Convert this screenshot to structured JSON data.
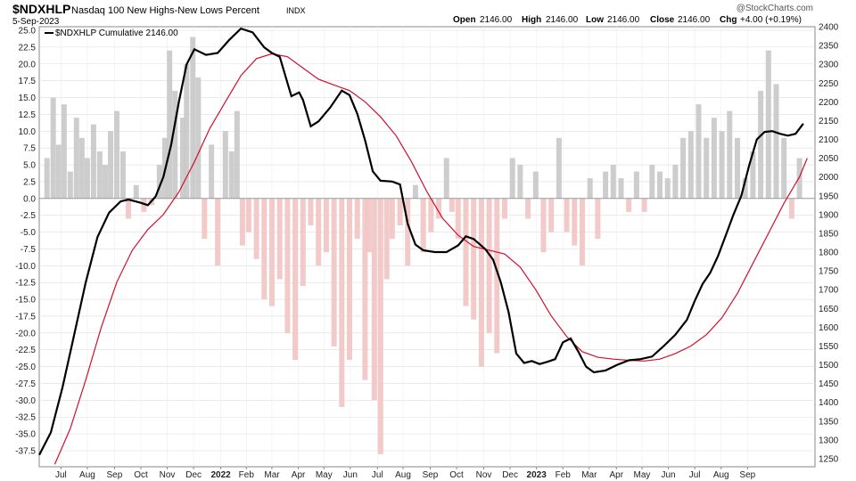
{
  "header": {
    "symbol": "$NDXHLP",
    "name": "Nasdaq 100 New Highs-New Lows Percent",
    "exchange": "INDX",
    "date": "5-Sep-2023",
    "ohlc": {
      "open_label": "Open",
      "open": "2146.00",
      "high_label": "High",
      "high": "2146.00",
      "low_label": "Low",
      "low": "2146.00",
      "close_label": "Close",
      "close": "2146.00",
      "chg_label": "Chg",
      "chg": "+4.00 (+0.19%)"
    },
    "watermark": "@StockCharts.com"
  },
  "legend": {
    "text": "$NDXHLP Cumulative 2146.00"
  },
  "colors": {
    "cumulative": "#000000",
    "ma": "#d0102a",
    "pos_fill": "#c8c8c8",
    "neg_fill": "#f2c4c4",
    "grid": "#dddddd"
  },
  "chart_data": {
    "type": "line",
    "left_axis": {
      "min": -37.5,
      "max": 25.0,
      "ticks": [
        "25.0",
        "22.5",
        "20.0",
        "17.5",
        "15.0",
        "12.5",
        "10.0",
        "7.5",
        "5.0",
        "2.5",
        "0.0",
        "-2.5",
        "-5.0",
        "-7.5",
        "-10.0",
        "-12.5",
        "-15.0",
        "-17.5",
        "-20.0",
        "-22.5",
        "-25.0",
        "-27.5",
        "-30.0",
        "-32.5",
        "-35.0",
        "-37.5"
      ]
    },
    "right_axis": {
      "min": 1250,
      "max": 2400,
      "ticks": [
        "2400",
        "2350",
        "2300",
        "2250",
        "2200",
        "2150",
        "2100",
        "2050",
        "2000",
        "1950",
        "1900",
        "1850",
        "1800",
        "1750",
        "1700",
        "1650",
        "1600",
        "1550",
        "1500",
        "1450",
        "1400",
        "1350",
        "1300",
        "1250"
      ]
    },
    "x_labels": [
      {
        "label": "Jul",
        "t": 0.028
      },
      {
        "label": "Aug",
        "t": 0.062
      },
      {
        "label": "Sep",
        "t": 0.097
      },
      {
        "label": "Oct",
        "t": 0.131
      },
      {
        "label": "Nov",
        "t": 0.165
      },
      {
        "label": "Dec",
        "t": 0.199
      },
      {
        "label": "2022",
        "t": 0.234,
        "year": true
      },
      {
        "label": "Feb",
        "t": 0.267
      },
      {
        "label": "Mar",
        "t": 0.3
      },
      {
        "label": "Apr",
        "t": 0.334
      },
      {
        "label": "May",
        "t": 0.367
      },
      {
        "label": "Jun",
        "t": 0.401
      },
      {
        "label": "Jul",
        "t": 0.436
      },
      {
        "label": "Aug",
        "t": 0.469
      },
      {
        "label": "Sep",
        "t": 0.504
      },
      {
        "label": "Oct",
        "t": 0.538
      },
      {
        "label": "Nov",
        "t": 0.573
      },
      {
        "label": "Dec",
        "t": 0.607
      },
      {
        "label": "2023",
        "t": 0.641,
        "year": true
      },
      {
        "label": "Feb",
        "t": 0.675
      },
      {
        "label": "Mar",
        "t": 0.709
      },
      {
        "label": "Apr",
        "t": 0.744
      },
      {
        "label": "May",
        "t": 0.777
      },
      {
        "label": "Jun",
        "t": 0.811
      },
      {
        "label": "Jul",
        "t": 0.845
      },
      {
        "label": "Aug",
        "t": 0.879
      },
      {
        "label": "Sep",
        "t": 0.913
      }
    ],
    "series": [
      {
        "name": "$NDXHLP Cumulative",
        "axis": "right",
        "points": [
          [
            0,
            1260
          ],
          [
            0.015,
            1320
          ],
          [
            0.03,
            1440
          ],
          [
            0.045,
            1580
          ],
          [
            0.06,
            1720
          ],
          [
            0.075,
            1840
          ],
          [
            0.09,
            1905
          ],
          [
            0.105,
            1935
          ],
          [
            0.115,
            1940
          ],
          [
            0.13,
            1932
          ],
          [
            0.14,
            1925
          ],
          [
            0.15,
            1948
          ],
          [
            0.16,
            2000
          ],
          [
            0.17,
            2085
          ],
          [
            0.18,
            2200
          ],
          [
            0.19,
            2300
          ],
          [
            0.2,
            2340
          ],
          [
            0.215,
            2325
          ],
          [
            0.23,
            2330
          ],
          [
            0.245,
            2365
          ],
          [
            0.26,
            2395
          ],
          [
            0.275,
            2385
          ],
          [
            0.29,
            2345
          ],
          [
            0.3,
            2330
          ],
          [
            0.31,
            2320
          ],
          [
            0.325,
            2215
          ],
          [
            0.335,
            2225
          ],
          [
            0.34,
            2205
          ],
          [
            0.35,
            2135
          ],
          [
            0.36,
            2148
          ],
          [
            0.375,
            2185
          ],
          [
            0.39,
            2230
          ],
          [
            0.4,
            2218
          ],
          [
            0.41,
            2168
          ],
          [
            0.42,
            2098
          ],
          [
            0.43,
            2015
          ],
          [
            0.44,
            1990
          ],
          [
            0.455,
            1988
          ],
          [
            0.465,
            1980
          ],
          [
            0.475,
            1875
          ],
          [
            0.485,
            1820
          ],
          [
            0.495,
            1805
          ],
          [
            0.51,
            1800
          ],
          [
            0.525,
            1800
          ],
          [
            0.54,
            1818
          ],
          [
            0.55,
            1842
          ],
          [
            0.56,
            1835
          ],
          [
            0.575,
            1808
          ],
          [
            0.585,
            1780
          ],
          [
            0.595,
            1720
          ],
          [
            0.605,
            1640
          ],
          [
            0.615,
            1530
          ],
          [
            0.625,
            1505
          ],
          [
            0.635,
            1510
          ],
          [
            0.645,
            1502
          ],
          [
            0.655,
            1508
          ],
          [
            0.665,
            1515
          ],
          [
            0.675,
            1560
          ],
          [
            0.685,
            1570
          ],
          [
            0.695,
            1535
          ],
          [
            0.705,
            1495
          ],
          [
            0.715,
            1480
          ],
          [
            0.73,
            1485
          ],
          [
            0.745,
            1500
          ],
          [
            0.76,
            1512
          ],
          [
            0.775,
            1515
          ],
          [
            0.79,
            1522
          ],
          [
            0.805,
            1550
          ],
          [
            0.82,
            1580
          ],
          [
            0.835,
            1620
          ],
          [
            0.845,
            1670
          ],
          [
            0.855,
            1715
          ],
          [
            0.865,
            1745
          ],
          [
            0.875,
            1790
          ],
          [
            0.885,
            1845
          ],
          [
            0.895,
            1900
          ],
          [
            0.905,
            1950
          ],
          [
            0.915,
            2030
          ],
          [
            0.925,
            2100
          ],
          [
            0.935,
            2120
          ],
          [
            0.945,
            2122
          ],
          [
            0.955,
            2115
          ],
          [
            0.965,
            2110
          ],
          [
            0.975,
            2115
          ],
          [
            0.985,
            2142
          ]
        ]
      },
      {
        "name": "Moving Average",
        "axis": "right",
        "points": [
          [
            0.02,
            1235
          ],
          [
            0.04,
            1330
          ],
          [
            0.06,
            1460
          ],
          [
            0.08,
            1600
          ],
          [
            0.1,
            1720
          ],
          [
            0.12,
            1805
          ],
          [
            0.14,
            1860
          ],
          [
            0.16,
            1900
          ],
          [
            0.18,
            1960
          ],
          [
            0.2,
            2040
          ],
          [
            0.22,
            2130
          ],
          [
            0.24,
            2200
          ],
          [
            0.26,
            2270
          ],
          [
            0.28,
            2315
          ],
          [
            0.3,
            2328
          ],
          [
            0.32,
            2320
          ],
          [
            0.34,
            2290
          ],
          [
            0.36,
            2260
          ],
          [
            0.38,
            2245
          ],
          [
            0.4,
            2230
          ],
          [
            0.42,
            2200
          ],
          [
            0.44,
            2160
          ],
          [
            0.46,
            2110
          ],
          [
            0.48,
            2040
          ],
          [
            0.5,
            1960
          ],
          [
            0.52,
            1890
          ],
          [
            0.54,
            1845
          ],
          [
            0.56,
            1815
          ],
          [
            0.58,
            1805
          ],
          [
            0.6,
            1795
          ],
          [
            0.62,
            1760
          ],
          [
            0.64,
            1700
          ],
          [
            0.66,
            1630
          ],
          [
            0.68,
            1575
          ],
          [
            0.7,
            1535
          ],
          [
            0.72,
            1520
          ],
          [
            0.74,
            1515
          ],
          [
            0.76,
            1512
          ],
          [
            0.78,
            1510
          ],
          [
            0.8,
            1515
          ],
          [
            0.82,
            1530
          ],
          [
            0.84,
            1550
          ],
          [
            0.86,
            1580
          ],
          [
            0.88,
            1625
          ],
          [
            0.9,
            1690
          ],
          [
            0.92,
            1770
          ],
          [
            0.94,
            1850
          ],
          [
            0.96,
            1930
          ],
          [
            0.98,
            2000
          ],
          [
            0.99,
            2050
          ]
        ]
      },
      {
        "name": "Daily Percent",
        "axis": "left",
        "bars": [
          [
            0.01,
            6
          ],
          [
            0.018,
            15
          ],
          [
            0.025,
            8
          ],
          [
            0.032,
            14
          ],
          [
            0.04,
            4
          ],
          [
            0.048,
            12
          ],
          [
            0.055,
            9
          ],
          [
            0.062,
            6
          ],
          [
            0.07,
            11
          ],
          [
            0.078,
            7
          ],
          [
            0.085,
            5
          ],
          [
            0.092,
            10
          ],
          [
            0.1,
            13
          ],
          [
            0.108,
            7
          ],
          [
            0.115,
            -3
          ],
          [
            0.125,
            2
          ],
          [
            0.135,
            -2
          ],
          [
            0.145,
            -1
          ],
          [
            0.155,
            5
          ],
          [
            0.162,
            9
          ],
          [
            0.168,
            22
          ],
          [
            0.175,
            16
          ],
          [
            0.185,
            12
          ],
          [
            0.19,
            20
          ],
          [
            0.198,
            24
          ],
          [
            0.205,
            18
          ],
          [
            0.213,
            -6
          ],
          [
            0.222,
            8
          ],
          [
            0.23,
            -10
          ],
          [
            0.24,
            10
          ],
          [
            0.248,
            7
          ],
          [
            0.255,
            13
          ],
          [
            0.262,
            -7
          ],
          [
            0.27,
            -5
          ],
          [
            0.28,
            -9
          ],
          [
            0.29,
            -15
          ],
          [
            0.3,
            -16
          ],
          [
            0.31,
            -12
          ],
          [
            0.32,
            -20
          ],
          [
            0.33,
            -24
          ],
          [
            0.34,
            -13
          ],
          [
            0.35,
            -4
          ],
          [
            0.36,
            -10
          ],
          [
            0.37,
            -8
          ],
          [
            0.38,
            -22
          ],
          [
            0.39,
            -31
          ],
          [
            0.4,
            -24
          ],
          [
            0.41,
            -6
          ],
          [
            0.42,
            -27
          ],
          [
            0.425,
            -8
          ],
          [
            0.432,
            -30
          ],
          [
            0.44,
            -38
          ],
          [
            0.448,
            -12
          ],
          [
            0.455,
            -6
          ],
          [
            0.465,
            -4
          ],
          [
            0.475,
            -10
          ],
          [
            0.485,
            2
          ],
          [
            0.495,
            -8
          ],
          [
            0.505,
            -5
          ],
          [
            0.515,
            -3
          ],
          [
            0.525,
            6
          ],
          [
            0.532,
            -2
          ],
          [
            0.54,
            -6
          ],
          [
            0.55,
            -16
          ],
          [
            0.56,
            -18
          ],
          [
            0.57,
            -25
          ],
          [
            0.58,
            -20
          ],
          [
            0.59,
            -23
          ],
          [
            0.6,
            -3
          ],
          [
            0.61,
            6
          ],
          [
            0.62,
            5
          ],
          [
            0.63,
            -3
          ],
          [
            0.64,
            4
          ],
          [
            0.65,
            -8
          ],
          [
            0.66,
            -5
          ],
          [
            0.67,
            9
          ],
          [
            0.68,
            -5
          ],
          [
            0.69,
            -7
          ],
          [
            0.7,
            -10
          ],
          [
            0.71,
            3
          ],
          [
            0.72,
            -6
          ],
          [
            0.73,
            4
          ],
          [
            0.74,
            5
          ],
          [
            0.75,
            3
          ],
          [
            0.76,
            -2
          ],
          [
            0.77,
            4
          ],
          [
            0.78,
            -2
          ],
          [
            0.79,
            5
          ],
          [
            0.8,
            4
          ],
          [
            0.81,
            3
          ],
          [
            0.82,
            5
          ],
          [
            0.83,
            9
          ],
          [
            0.84,
            10
          ],
          [
            0.85,
            14
          ],
          [
            0.86,
            9
          ],
          [
            0.87,
            12
          ],
          [
            0.88,
            10
          ],
          [
            0.89,
            13
          ],
          [
            0.9,
            9
          ],
          [
            0.91,
            3
          ],
          [
            0.92,
            7
          ],
          [
            0.93,
            16
          ],
          [
            0.94,
            22
          ],
          [
            0.95,
            17
          ],
          [
            0.96,
            9
          ],
          [
            0.97,
            -3
          ],
          [
            0.98,
            6
          ]
        ]
      }
    ],
    "zero_line": 0
  }
}
